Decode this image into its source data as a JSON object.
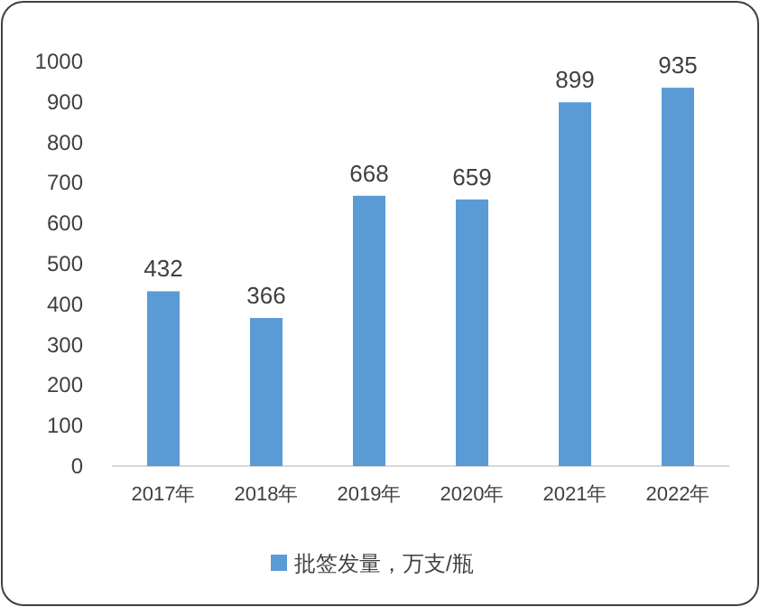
{
  "chart_data": {
    "type": "bar",
    "categories": [
      "2017年",
      "2018年",
      "2019年",
      "2020年",
      "2021年",
      "2022年"
    ],
    "series": [
      {
        "name": "批签发量，万支/瓶",
        "color": "#5b9bd5",
        "values": [
          432,
          366,
          668,
          659,
          899,
          935
        ]
      }
    ],
    "ylim": [
      0,
      1000
    ],
    "yticks": [
      0,
      100,
      200,
      300,
      400,
      500,
      600,
      700,
      800,
      900,
      1000
    ],
    "data_labels": true,
    "legend": "bottom"
  }
}
